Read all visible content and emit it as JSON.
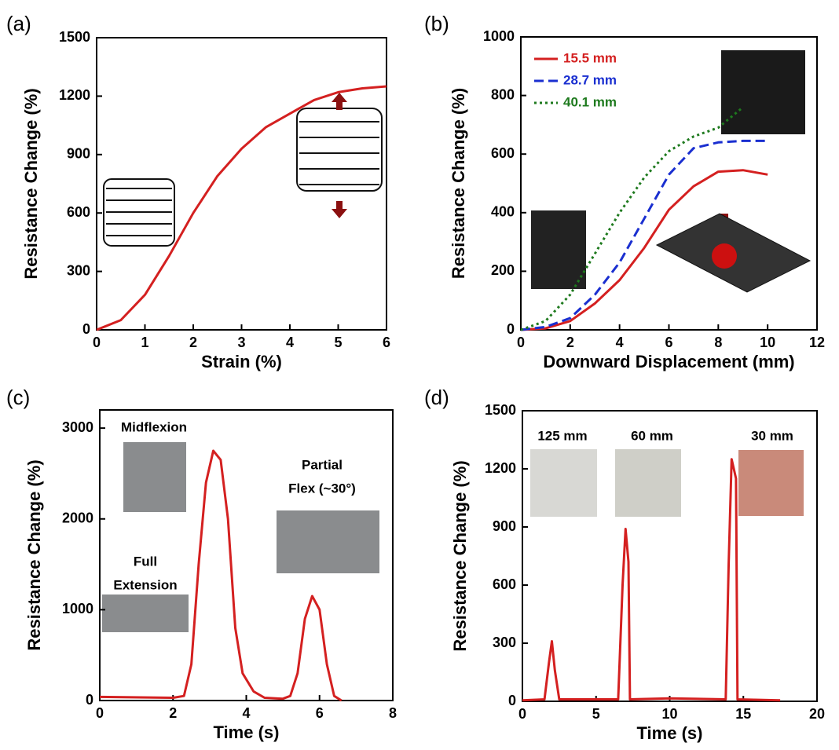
{
  "chart_data": [
    {
      "type": "line",
      "panel": "(a)",
      "xlabel": "Strain (%)",
      "ylabel": "Resistance Change (%)",
      "x": [
        0,
        0.5,
        1,
        1.5,
        2,
        2.5,
        3,
        3.5,
        4,
        4.5,
        5,
        5.5,
        6
      ],
      "series": [
        {
          "color": "#d42020",
          "values": [
            0,
            50,
            180,
            380,
            600,
            790,
            930,
            1040,
            1110,
            1180,
            1220,
            1240,
            1250
          ]
        }
      ],
      "xlim": [
        0,
        6
      ],
      "xticks": [
        0,
        1,
        2,
        3,
        4,
        5,
        6
      ],
      "ylim": [
        0,
        1500
      ],
      "yticks": [
        0,
        300,
        600,
        900,
        1200,
        1500
      ]
    },
    {
      "type": "line",
      "panel": "(b)",
      "xlabel": "Downward Displacement (mm)",
      "ylabel": "Resistance Change (%)",
      "x": [
        0,
        1,
        2,
        3,
        4,
        5,
        6,
        7,
        8,
        9,
        10
      ],
      "series": [
        {
          "name": "15.5 mm",
          "color": "#d42020",
          "dash": "solid",
          "values": [
            0,
            5,
            30,
            90,
            170,
            280,
            410,
            490,
            540,
            545,
            530
          ]
        },
        {
          "name": "28.7 mm",
          "color": "#1a2fd0",
          "dash": "dashed",
          "values": [
            0,
            10,
            40,
            120,
            230,
            380,
            530,
            620,
            640,
            645,
            645
          ]
        },
        {
          "name": "40.1 mm",
          "color": "#1e7a1e",
          "dash": "dotted",
          "values": [
            0,
            30,
            120,
            260,
            400,
            520,
            610,
            660,
            690,
            760,
            null
          ]
        }
      ],
      "legend": "upper left",
      "xlim": [
        0,
        12
      ],
      "xticks": [
        0,
        2,
        4,
        6,
        8,
        10,
        12
      ],
      "ylim": [
        0,
        1000
      ],
      "yticks": [
        0,
        200,
        400,
        600,
        800,
        1000
      ]
    },
    {
      "type": "line",
      "panel": "(c)",
      "xlabel": "Time (s)",
      "ylabel": "Resistance Change (%)",
      "annotations": [
        [
          "Midflexion"
        ],
        [
          "Partial",
          "Flex (~30°)"
        ],
        [
          "Full",
          "Extension"
        ]
      ],
      "x": [
        0,
        2,
        2.3,
        2.5,
        2.7,
        2.9,
        3.1,
        3.3,
        3.5,
        3.7,
        3.9,
        4.2,
        4.5,
        5,
        5.2,
        5.4,
        5.6,
        5.8,
        6.0,
        6.2,
        6.4,
        6.6
      ],
      "series": [
        {
          "color": "#d42020",
          "values": [
            40,
            30,
            50,
            400,
            1500,
            2400,
            2750,
            2650,
            2000,
            800,
            300,
            100,
            30,
            20,
            50,
            300,
            900,
            1150,
            1000,
            400,
            50,
            0
          ]
        }
      ],
      "xlim": [
        0,
        8
      ],
      "xticks": [
        0,
        2,
        4,
        6,
        8
      ],
      "ylim": [
        0,
        3200
      ],
      "yticks": [
        0,
        1000,
        2000,
        3000
      ]
    },
    {
      "type": "line",
      "panel": "(d)",
      "xlabel": "Time (s)",
      "ylabel": "Resistance Change (%)",
      "annotations": [
        [
          "125 mm"
        ],
        [
          "60 mm"
        ],
        [
          "30 mm"
        ]
      ],
      "x": [
        0,
        1.5,
        1.8,
        2,
        2.2,
        2.5,
        6.5,
        6.8,
        7,
        7.2,
        7.3,
        10,
        13.8,
        14,
        14.2,
        14.5,
        14.6,
        17.5
      ],
      "series": [
        {
          "color": "#d42020",
          "values": [
            5,
            10,
            200,
            310,
            160,
            10,
            10,
            600,
            890,
            720,
            10,
            15,
            10,
            700,
            1250,
            1150,
            10,
            5
          ]
        }
      ],
      "xlim": [
        0,
        20
      ],
      "xticks": [
        0,
        5,
        10,
        15,
        20
      ],
      "ylim": [
        0,
        1500
      ],
      "yticks": [
        0,
        300,
        600,
        900,
        1200,
        1500
      ]
    }
  ]
}
